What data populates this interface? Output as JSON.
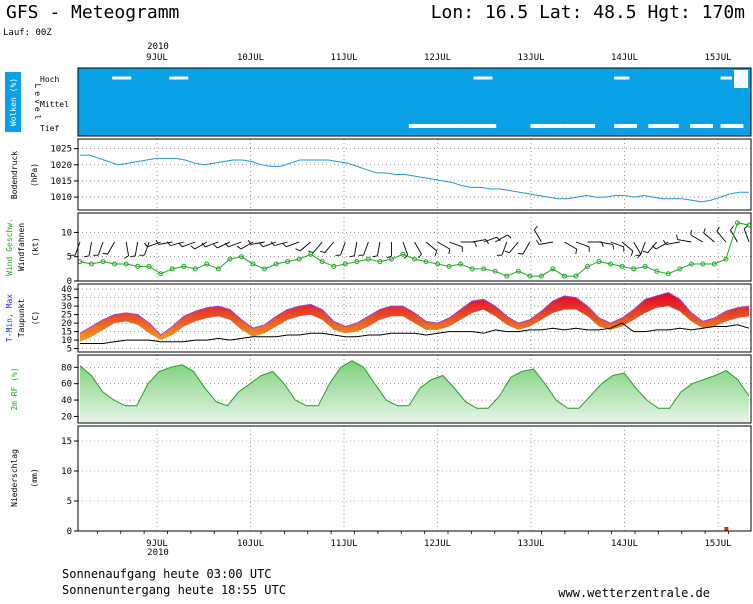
{
  "header": {
    "title": "GFS - Meteogramm",
    "location": "Lon: 16.5 Lat: 48.5 Hgt: 170m",
    "run": "Lauf: 00Z"
  },
  "footer": {
    "sunrise": "Sonnenaufgang heute 03:00 UTC",
    "sunset": "Sonnenuntergang heute 18:55 UTC",
    "site": "www.wetterzentrale.de"
  },
  "colors": {
    "cloud_bg": "#0aa0e6",
    "cloud_marks": "#ffffff",
    "pressure_line": "#1e9ad6",
    "wind_line": "#22aa22",
    "dewpoint_line": "#000000",
    "temp_band_top": "#e0002a",
    "temp_band_bottom": "#f0a020",
    "temp_peak": "#a040e0",
    "humidity_fill": "#7ad07a",
    "precip_bar": "#cc3300"
  },
  "chart_data": [
    {
      "panel": "clouds",
      "type": "heatmap",
      "ylabel": "Wolken (%)",
      "levels_label": "Level",
      "levels": [
        "Hoch",
        "Mittel",
        "Tief"
      ],
      "x": [
        "9JUL",
        "10JUL",
        "11JUL",
        "12JUL",
        "13JUL",
        "14JUL",
        "15JUL"
      ],
      "x_year": "2010",
      "series": [
        {
          "name": "Hoch",
          "segments": [
            [
              0.9,
              1.4
            ],
            [
              2.4,
              2.9
            ],
            [
              10.4,
              10.9
            ],
            [
              14.1,
              14.5
            ],
            [
              16.9,
              17.2
            ],
            [
              17.3,
              17.5
            ]
          ]
        },
        {
          "name": "Tief",
          "segments": [
            [
              8.7,
              9.6
            ],
            [
              9.6,
              10.0
            ],
            [
              10.0,
              11.0
            ],
            [
              11.9,
              12.8
            ],
            [
              12.8,
              13.6
            ],
            [
              14.1,
              14.7
            ],
            [
              15.0,
              15.8
            ],
            [
              16.1,
              16.7
            ],
            [
              16.9,
              17.5
            ]
          ]
        }
      ]
    },
    {
      "panel": "pressure",
      "type": "line",
      "ylabel": "Bodendruck",
      "unit": "(hPa)",
      "yticks": [
        1010,
        1015,
        1020,
        1025
      ],
      "ylim": [
        1006,
        1028
      ],
      "values": [
        1023,
        1023,
        1022,
        1021,
        1020,
        1020.5,
        1021,
        1021.5,
        1022,
        1022,
        1022,
        1021.5,
        1020.5,
        1020,
        1020.5,
        1021,
        1021.5,
        1021.5,
        1021,
        1020,
        1019.5,
        1019.5,
        1020.5,
        1021.5,
        1021.5,
        1021.5,
        1021.5,
        1021,
        1020.5,
        1019.5,
        1018.5,
        1017.5,
        1017.5,
        1017,
        1017,
        1016.5,
        1016,
        1015.5,
        1015,
        1014.5,
        1013.5,
        1013,
        1013,
        1012.5,
        1012.5,
        1012,
        1011.5,
        1011,
        1010.5,
        1010,
        1009.5,
        1009.5,
        1010,
        1010.5,
        1010,
        1010,
        1010.5,
        1010.5,
        1010,
        1010.5,
        1010,
        1009.5,
        1009.5,
        1009.5,
        1009,
        1008.5,
        1009,
        1010,
        1011,
        1011.5,
        1011.5
      ]
    },
    {
      "panel": "wind",
      "type": "line",
      "ylabel": "Wind Geschw.",
      "ylabel2": "Windfahnen",
      "unit": "(kt)",
      "yticks": [
        0,
        5,
        10
      ],
      "ylim": [
        0,
        14
      ],
      "values": [
        4,
        3.5,
        4,
        3.5,
        3.5,
        3,
        3,
        1.5,
        2.5,
        3,
        2.5,
        3.5,
        2.5,
        4.5,
        5,
        3.5,
        2.5,
        3.5,
        4,
        4.5,
        5.5,
        4,
        3,
        3.5,
        4,
        4.5,
        4,
        4.5,
        5.5,
        4.5,
        4,
        3.5,
        3,
        3.5,
        2.5,
        2.5,
        2,
        1,
        2,
        1,
        1,
        2.5,
        1,
        1,
        3,
        4,
        3.5,
        3,
        2.5,
        3,
        2,
        1.5,
        2.5,
        3.5,
        3.5,
        3.5,
        4.5,
        12,
        11.5
      ],
      "barbs_dirs": [
        200,
        190,
        200,
        210,
        170,
        190,
        200,
        250,
        260,
        255,
        250,
        240,
        250,
        245,
        250,
        240,
        260,
        250,
        255,
        250,
        230,
        220,
        220,
        200,
        190,
        200,
        190,
        180,
        160,
        150,
        130,
        120,
        110,
        90,
        80,
        70,
        60,
        200,
        220,
        210,
        330,
        260,
        120,
        110,
        90,
        100,
        110,
        130,
        150,
        200,
        220,
        240,
        260,
        280,
        300,
        310,
        320,
        330,
        340
      ]
    },
    {
      "panel": "temperature",
      "type": "area",
      "ylabel": "T-Min, Max",
      "ylabel2": "Taupunkt",
      "unit": "(C)",
      "yticks": [
        5,
        10,
        15,
        20,
        25,
        30,
        35,
        40
      ],
      "ylim": [
        3,
        43
      ],
      "series": [
        {
          "name": "T-Max",
          "values": [
            14,
            18,
            22,
            25,
            26,
            25,
            20,
            13,
            18,
            24,
            27,
            29,
            30,
            28,
            22,
            17,
            19,
            24,
            28,
            30,
            31,
            28,
            21,
            18,
            20,
            24,
            28,
            30,
            30,
            26,
            21,
            20,
            23,
            28,
            33,
            34,
            30,
            24,
            20,
            22,
            27,
            33,
            36,
            35,
            30,
            23,
            20,
            23,
            28,
            34,
            36,
            38,
            34,
            26,
            21,
            23,
            27,
            29,
            30
          ]
        },
        {
          "name": "T-Min",
          "values": [
            9,
            12,
            16,
            20,
            21,
            19,
            14,
            10,
            13,
            18,
            21,
            23,
            24,
            22,
            16,
            12,
            14,
            18,
            22,
            24,
            25,
            22,
            16,
            14,
            15,
            18,
            22,
            24,
            24,
            20,
            16,
            16,
            18,
            22,
            26,
            28,
            24,
            19,
            16,
            18,
            22,
            26,
            28,
            28,
            24,
            18,
            16,
            18,
            22,
            26,
            29,
            30,
            27,
            21,
            17,
            18,
            21,
            23,
            24
          ]
        },
        {
          "name": "Taupunkt",
          "values": [
            8,
            8,
            8,
            9,
            10,
            10,
            10,
            9,
            9,
            9,
            10,
            10,
            11,
            10,
            11,
            12,
            12,
            12,
            13,
            13,
            14,
            14,
            13,
            12,
            12,
            13,
            13,
            14,
            14,
            14,
            13,
            14,
            15,
            15,
            15,
            14,
            16,
            15,
            15,
            16,
            16,
            17,
            16,
            17,
            16,
            16,
            17,
            20,
            15,
            15,
            16,
            16,
            17,
            16,
            17,
            18,
            18,
            19,
            17
          ]
        }
      ]
    },
    {
      "panel": "humidity",
      "type": "area",
      "ylabel": "2m RF (%)",
      "yticks": [
        20,
        40,
        60,
        80
      ],
      "ylim": [
        12,
        95
      ],
      "values": [
        82,
        70,
        50,
        40,
        33,
        33,
        60,
        75,
        80,
        83,
        75,
        55,
        38,
        33,
        50,
        60,
        70,
        75,
        60,
        40,
        33,
        33,
        60,
        80,
        88,
        80,
        60,
        40,
        33,
        33,
        55,
        65,
        70,
        55,
        38,
        30,
        30,
        45,
        68,
        75,
        78,
        60,
        40,
        30,
        30,
        45,
        60,
        70,
        73,
        55,
        40,
        30,
        30,
        50,
        60,
        65,
        70,
        76,
        65,
        45
      ]
    },
    {
      "panel": "precipitation",
      "type": "bar",
      "ylabel": "Niederschlag",
      "unit": "(mm)",
      "yticks": [
        0,
        5,
        10,
        15
      ],
      "ylim": [
        0,
        17.5
      ],
      "bars": [
        {
          "x": 57,
          "value": 0.3
        }
      ]
    }
  ]
}
